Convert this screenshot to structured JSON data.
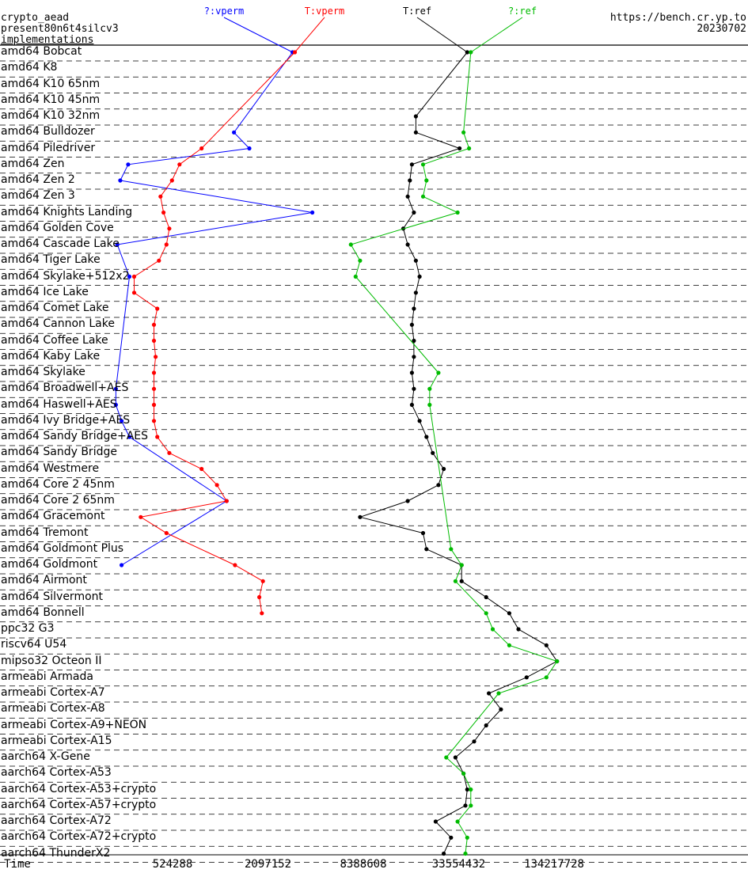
{
  "header": {
    "title_line1": "crypto_aead",
    "title_line2": "present80n6t4silcv3",
    "title_line3": "implementations",
    "site": "https://bench.cr.yp.to",
    "date": "20230702"
  },
  "chart_data": {
    "type": "line",
    "x_scale": "log",
    "xlabel": "Time",
    "x_ticks": [
      "524288",
      "2097152",
      "8388608",
      "33554432",
      "134217728"
    ],
    "series": [
      {
        "name": "?:vperm",
        "color": "#0000ff"
      },
      {
        "name": "T:vperm",
        "color": "#ff0000"
      },
      {
        "name": "T:ref",
        "color": "#000000"
      },
      {
        "name": "?:ref",
        "color": "#00bb00"
      }
    ],
    "categories": [
      "amd64 Bobcat",
      "amd64 K8",
      "amd64 K10 65nm",
      "amd64 K10 45nm",
      "amd64 K10 32nm",
      "amd64 Bulldozer",
      "amd64 Piledriver",
      "amd64 Zen",
      "amd64 Zen 2",
      "amd64 Zen 3",
      "amd64 Knights Landing",
      "amd64 Golden Cove",
      "amd64 Cascade Lake",
      "amd64 Tiger Lake",
      "amd64 Skylake+512x2",
      "amd64 Ice Lake",
      "amd64 Comet Lake",
      "amd64 Cannon Lake",
      "amd64 Coffee Lake",
      "amd64 Kaby Lake",
      "amd64 Skylake",
      "amd64 Broadwell+AES",
      "amd64 Haswell+AES",
      "amd64 Ivy Bridge+AES",
      "amd64 Sandy Bridge+AES",
      "amd64 Sandy Bridge",
      "amd64 Westmere",
      "amd64 Core 2 45nm",
      "amd64 Core 2 65nm",
      "amd64 Gracemont",
      "amd64 Tremont",
      "amd64 Goldmont Plus",
      "amd64 Goldmont",
      "amd64 Airmont",
      "amd64 Silvermont",
      "amd64 Bonnell",
      "ppc32 G3",
      "riscv64 U54",
      "mipso32 Octeon II",
      "armeabi Armada",
      "armeabi Cortex-A7",
      "armeabi Cortex-A8",
      "armeabi Cortex-A9+NEON",
      "armeabi Cortex-A15",
      "aarch64 X-Gene",
      "aarch64 Cortex-A53",
      "aarch64 Cortex-A53+crypto",
      "aarch64 Cortex-A57+crypto",
      "aarch64 Cortex-A72",
      "aarch64 Cortex-A72+crypto",
      "aarch64 ThunderX2"
    ],
    "values": {
      "?:vperm": [
        3000000,
        null,
        null,
        null,
        null,
        1280000,
        1600000,
        275000,
        245000,
        null,
        4000000,
        null,
        235000,
        null,
        280000,
        null,
        null,
        null,
        null,
        null,
        null,
        230000,
        230000,
        250000,
        280000,
        null,
        null,
        null,
        1150000,
        null,
        null,
        null,
        250000,
        null,
        null,
        null,
        null,
        null,
        null,
        null,
        null,
        null,
        null,
        null,
        null,
        null,
        null,
        null,
        null,
        null,
        null
      ],
      "T:vperm": [
        3100000,
        null,
        null,
        null,
        null,
        null,
        800000,
        580000,
        520000,
        440000,
        460000,
        500000,
        480000,
        430000,
        300000,
        300000,
        420000,
        400000,
        400000,
        410000,
        400000,
        400000,
        400000,
        400000,
        420000,
        500000,
        800000,
        1000000,
        1150000,
        330000,
        480000,
        null,
        1300000,
        1950000,
        1850000,
        1920000,
        null,
        null,
        null,
        null,
        null,
        null,
        null,
        null,
        null,
        null,
        null,
        null,
        null,
        null,
        null
      ],
      "T:ref": [
        38000000,
        null,
        null,
        null,
        18000000,
        18000000,
        34000000,
        17000000,
        16500000,
        16000000,
        17500000,
        15000000,
        16000000,
        18000000,
        19000000,
        18000000,
        17500000,
        17000000,
        17500000,
        17500000,
        17000000,
        17500000,
        17000000,
        19000000,
        21000000,
        23000000,
        27000000,
        25000000,
        16000000,
        8000000,
        20000000,
        21000000,
        35000000,
        35000000,
        50000000,
        70000000,
        80000000,
        120000000,
        140000000,
        90000000,
        52000000,
        62000000,
        50000000,
        42000000,
        32000000,
        36000000,
        38000000,
        37000000,
        24000000,
        30000000,
        27000000
      ],
      "?:ref": [
        40000000,
        null,
        null,
        null,
        null,
        36000000,
        39000000,
        20000000,
        21000000,
        20000000,
        33000000,
        null,
        7000000,
        8000000,
        7500000,
        null,
        null,
        null,
        null,
        null,
        25000000,
        22000000,
        22000000,
        null,
        null,
        null,
        null,
        null,
        null,
        null,
        null,
        30000000,
        35000000,
        32000000,
        null,
        50000000,
        55000000,
        70000000,
        140000000,
        120000000,
        60000000,
        null,
        null,
        null,
        28000000,
        36000000,
        40000000,
        40000000,
        33000000,
        38000000,
        37000000
      ]
    }
  }
}
